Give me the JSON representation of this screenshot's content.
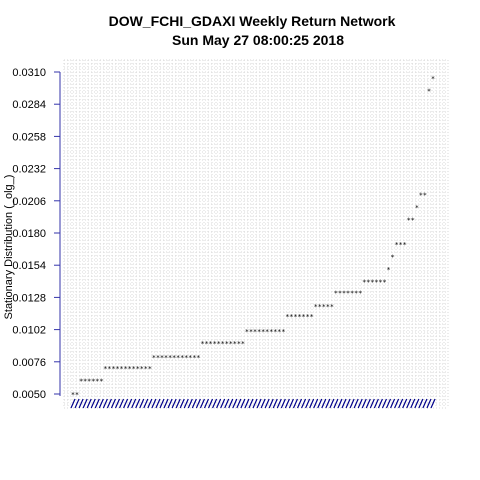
{
  "chart_data": {
    "type": "scatter",
    "title": "DOW_FCHI_GDAXI  Weekly Return Network",
    "subtitle": "Sun May 27 08:00:25 2018",
    "ylabel": "Stationary Distribution (_olg_)",
    "xlabel": "",
    "ylim": [
      0.005,
      0.0318
    ],
    "yticks": [
      0.005,
      0.0076,
      0.0102,
      0.0128,
      0.0154,
      0.018,
      0.0206,
      0.0232,
      0.0258,
      0.0284,
      0.031
    ],
    "yticklabels": [
      "0.0050",
      "0.0076",
      "0.0102",
      "0.0128",
      "0.0154",
      "0.0180",
      "0.0206",
      "0.0232",
      "0.0258",
      "0.0284",
      "0.0310"
    ],
    "grid": true,
    "levels": [
      {
        "y": 0.005,
        "count": 2
      },
      {
        "y": 0.0061,
        "count": 6
      },
      {
        "y": 0.0071,
        "count": 12
      },
      {
        "y": 0.008,
        "count": 12
      },
      {
        "y": 0.0091,
        "count": 11
      },
      {
        "y": 0.0101,
        "count": 10
      },
      {
        "y": 0.0113,
        "count": 7
      },
      {
        "y": 0.0121,
        "count": 5
      },
      {
        "y": 0.0132,
        "count": 7
      },
      {
        "y": 0.0141,
        "count": 6
      },
      {
        "y": 0.0151,
        "count": 1
      },
      {
        "y": 0.0161,
        "count": 1
      },
      {
        "y": 0.0171,
        "count": 3
      },
      {
        "y": 0.0191,
        "count": 2
      },
      {
        "y": 0.0201,
        "count": 1
      },
      {
        "y": 0.0211,
        "count": 2
      },
      {
        "y": 0.0295,
        "count": 1
      },
      {
        "y": 0.0305,
        "count": 1
      }
    ],
    "colors": {
      "point": "#000000",
      "axis": "#3333aa",
      "xlabel": "#00008b",
      "grid": "#d9d9d9"
    }
  }
}
